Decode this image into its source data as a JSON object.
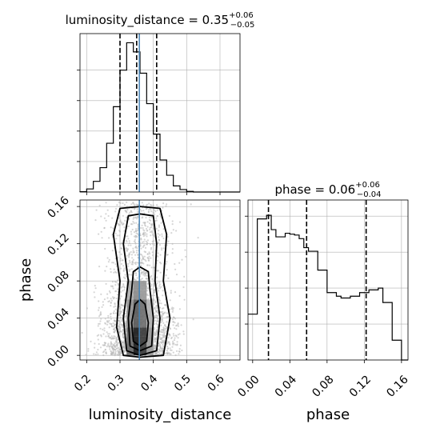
{
  "chart_data": [
    {
      "panel": "luminosity_distance marginal",
      "type": "histogram",
      "title": "luminosity_distance = 0.35",
      "title_sup": "+0.06",
      "title_sub": "−0.05",
      "xlim": [
        0.18,
        0.66
      ],
      "bins": [
        0.18,
        0.2,
        0.22,
        0.24,
        0.26,
        0.28,
        0.3,
        0.32,
        0.34,
        0.36,
        0.38,
        0.4,
        0.42,
        0.44,
        0.46,
        0.48,
        0.5,
        0.52,
        0.54,
        0.56,
        0.58,
        0.6,
        0.62,
        0.64,
        0.66
      ],
      "density": [
        0.01,
        0.1,
        0.35,
        0.8,
        1.6,
        2.8,
        4.0,
        4.9,
        4.6,
        3.9,
        2.9,
        1.9,
        1.05,
        0.55,
        0.2,
        0.08,
        0.02,
        0,
        0,
        0,
        0,
        0,
        0,
        0
      ],
      "ymax": 5.2,
      "quantile_lines": [
        0.3,
        0.35,
        0.41
      ],
      "truth": 0.358,
      "grid": true
    },
    {
      "panel": "phase marginal",
      "type": "histogram",
      "title": "phase = 0.06",
      "title_sup": "+0.06",
      "title_sub": "−0.04",
      "xlim": [
        -0.005,
        0.167
      ],
      "bins": [
        -0.005,
        0.0,
        0.005,
        0.01,
        0.015,
        0.02,
        0.025,
        0.03,
        0.035,
        0.04,
        0.045,
        0.05,
        0.055,
        0.06,
        0.065,
        0.07,
        0.075,
        0.08,
        0.085,
        0.09,
        0.095,
        0.1,
        0.105,
        0.11,
        0.115,
        0.12,
        0.125,
        0.13,
        0.135,
        0.14,
        0.145,
        0.15,
        0.155,
        0.16,
        0.167
      ],
      "density": [
        2.55,
        2.55,
        7.85,
        7.85,
        8.05,
        7.25,
        6.85,
        6.85,
        7.05,
        7.0,
        6.95,
        6.75,
        6.25,
        6.05,
        6.05,
        5.0,
        5.0,
        3.75,
        3.75,
        3.55,
        3.45,
        3.45,
        3.55,
        3.55,
        3.75,
        3.75,
        3.9,
        3.9,
        4.0,
        3.2,
        3.2,
        1.1,
        1.1,
        0.0
      ],
      "ymax": 8.9,
      "quantile_lines": [
        0.017,
        0.058,
        0.122
      ],
      "grid": true
    },
    {
      "panel": "2d posterior",
      "type": "scatter-density",
      "xlabel": "luminosity_distance",
      "ylabel": "phase",
      "xlim": [
        0.18,
        0.66
      ],
      "ylim": [
        -0.005,
        0.167
      ],
      "x_ticks": [
        "0.2",
        "0.3",
        "0.4",
        "0.5",
        "0.6"
      ],
      "x_tick_values": [
        0.2,
        0.3,
        0.4,
        0.5,
        0.6
      ],
      "y_ticks": [
        "0.00",
        "0.04",
        "0.08",
        "0.12",
        "0.16"
      ],
      "y_tick_values": [
        0.0,
        0.04,
        0.08,
        0.12,
        0.16
      ],
      "truth_x": 0.358,
      "sample_count": 2600,
      "grid": true
    }
  ],
  "phase_panel_axis": {
    "xlabel": "phase",
    "x_ticks": [
      "0.00",
      "0.04",
      "0.08",
      "0.12",
      "0.16"
    ],
    "x_tick_values": [
      0.0,
      0.04,
      0.08,
      0.12,
      0.16
    ]
  },
  "colors": {
    "histogram": "#000000",
    "truth_line": "#4682b4",
    "grid": "#b0b0b0",
    "scatter": "#b4b4b4"
  }
}
